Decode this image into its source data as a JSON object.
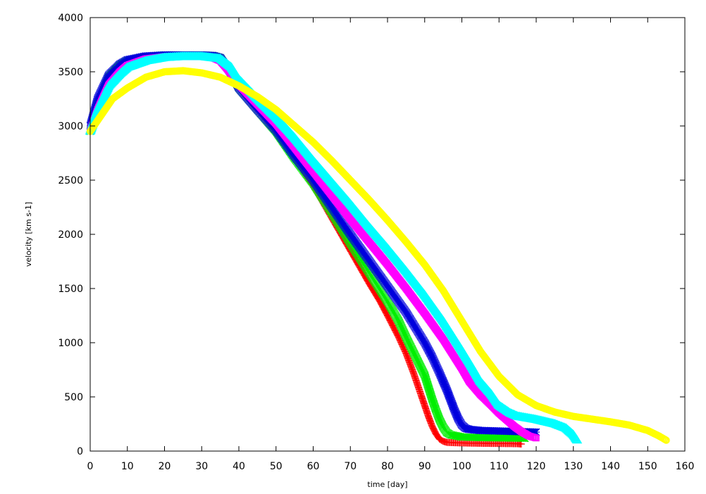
{
  "chart_data": {
    "type": "scatter",
    "title": "",
    "xlabel": "time [day]",
    "ylabel": "velocity [km s-1]",
    "xlim": [
      0,
      160
    ],
    "ylim": [
      0,
      4000
    ],
    "xticks": [
      0,
      10,
      20,
      30,
      40,
      50,
      60,
      70,
      80,
      90,
      100,
      110,
      120,
      130,
      140,
      150,
      160
    ],
    "yticks": [
      0,
      500,
      1000,
      1500,
      2000,
      2500,
      3000,
      3500,
      4000
    ],
    "grid": false,
    "legend": "none",
    "series": [
      {
        "color": "#ff0000",
        "marker": "plus",
        "x": [
          0,
          2,
          5,
          8,
          10,
          15,
          20,
          25,
          30,
          33,
          35,
          38,
          40,
          45,
          50,
          55,
          60,
          65,
          70,
          75,
          78,
          80,
          83,
          85,
          87,
          89,
          90,
          91,
          92,
          93,
          94,
          95,
          96,
          100,
          105,
          110,
          115,
          116
        ],
        "y": [
          2950,
          3200,
          3450,
          3560,
          3600,
          3640,
          3655,
          3655,
          3655,
          3650,
          3630,
          3480,
          3350,
          3150,
          2950,
          2700,
          2450,
          2150,
          1850,
          1550,
          1380,
          1250,
          1050,
          900,
          720,
          520,
          420,
          320,
          230,
          160,
          110,
          90,
          80,
          75,
          72,
          70,
          68,
          65
        ]
      },
      {
        "color": "#00ee00",
        "marker": "cross",
        "x": [
          0,
          2,
          5,
          8,
          10,
          15,
          20,
          25,
          30,
          33,
          35,
          38,
          40,
          45,
          50,
          55,
          60,
          65,
          70,
          75,
          80,
          83,
          85,
          88,
          90,
          91,
          92,
          93,
          94,
          95,
          96,
          97,
          100,
          105,
          110,
          115,
          117
        ],
        "y": [
          2950,
          3200,
          3450,
          3560,
          3600,
          3640,
          3655,
          3655,
          3655,
          3650,
          3630,
          3480,
          3350,
          3150,
          2950,
          2700,
          2470,
          2200,
          1920,
          1650,
          1380,
          1200,
          1050,
          840,
          700,
          590,
          480,
          380,
          290,
          220,
          170,
          150,
          130,
          125,
          122,
          120,
          118
        ]
      },
      {
        "color": "#0000dd",
        "marker": "star",
        "x": [
          0,
          2,
          5,
          8,
          10,
          15,
          20,
          25,
          30,
          33,
          35,
          38,
          40,
          45,
          50,
          55,
          60,
          65,
          70,
          75,
          80,
          85,
          90,
          92,
          94,
          95,
          96,
          97,
          98,
          99,
          100,
          101,
          102,
          105,
          110,
          115,
          120
        ],
        "y": [
          3000,
          3250,
          3470,
          3570,
          3610,
          3645,
          3655,
          3655,
          3655,
          3650,
          3630,
          3480,
          3350,
          3150,
          2960,
          2720,
          2500,
          2250,
          2000,
          1760,
          1520,
          1280,
          1000,
          870,
          720,
          640,
          560,
          470,
          380,
          300,
          240,
          210,
          200,
          190,
          185,
          180,
          175
        ]
      },
      {
        "color": "#ff00ff",
        "marker": "square",
        "x": [
          0,
          2,
          5,
          8,
          10,
          15,
          20,
          25,
          30,
          33,
          35,
          38,
          40,
          45,
          50,
          55,
          60,
          65,
          70,
          75,
          80,
          85,
          90,
          95,
          100,
          102,
          105,
          108,
          110,
          112,
          114,
          116,
          118,
          120
        ],
        "y": [
          2950,
          3150,
          3380,
          3500,
          3560,
          3620,
          3640,
          3640,
          3640,
          3630,
          3600,
          3480,
          3380,
          3200,
          3020,
          2800,
          2580,
          2360,
          2140,
          1930,
          1720,
          1500,
          1270,
          1030,
          760,
          640,
          520,
          420,
          350,
          290,
          230,
          180,
          140,
          120
        ]
      },
      {
        "color": "#00ffff",
        "marker": "triangle",
        "x": [
          0,
          2,
          5,
          8,
          10,
          15,
          20,
          25,
          30,
          35,
          38,
          40,
          45,
          50,
          55,
          60,
          65,
          70,
          75,
          80,
          85,
          90,
          95,
          100,
          103,
          105,
          108,
          110,
          113,
          115,
          120,
          125,
          128,
          130,
          131
        ],
        "y": [
          2950,
          3150,
          3370,
          3480,
          3540,
          3600,
          3630,
          3640,
          3640,
          3620,
          3540,
          3430,
          3250,
          3080,
          2890,
          2680,
          2480,
          2280,
          2070,
          1870,
          1660,
          1440,
          1200,
          930,
          760,
          640,
          520,
          420,
          350,
          320,
          290,
          250,
          210,
          150,
          100
        ]
      },
      {
        "color": "#ffff00",
        "marker": "circle",
        "x": [
          0,
          3,
          6,
          10,
          15,
          20,
          25,
          30,
          35,
          40,
          45,
          50,
          55,
          60,
          65,
          70,
          75,
          80,
          85,
          90,
          95,
          100,
          105,
          110,
          115,
          120,
          125,
          130,
          135,
          140,
          145,
          150,
          153,
          155
        ],
        "y": [
          2950,
          3100,
          3250,
          3350,
          3450,
          3500,
          3510,
          3490,
          3450,
          3370,
          3270,
          3150,
          3000,
          2850,
          2680,
          2500,
          2320,
          2130,
          1930,
          1720,
          1480,
          1200,
          920,
          690,
          520,
          420,
          360,
          320,
          295,
          270,
          240,
          190,
          140,
          100
        ]
      }
    ]
  }
}
